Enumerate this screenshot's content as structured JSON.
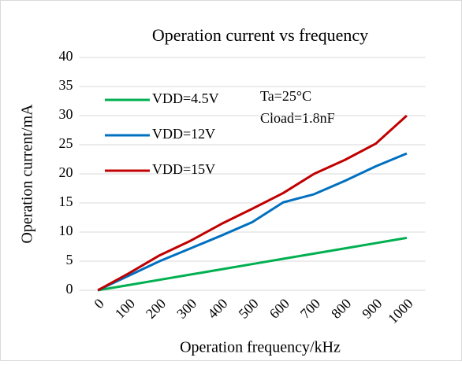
{
  "chart_data": {
    "type": "line",
    "title": "Operation current vs frequency",
    "xlabel": "Operation frequency/kHz",
    "ylabel": "Operation current/mA",
    "categories": [
      "0",
      "100",
      "200",
      "300",
      "400",
      "500",
      "600",
      "700",
      "800",
      "900",
      "1000"
    ],
    "series": [
      {
        "name": "VDD=4.5V",
        "color": "#00b050",
        "values": [
          0,
          0.9,
          1.8,
          2.7,
          3.6,
          4.5,
          5.4,
          6.3,
          7.2,
          8.1,
          9.0
        ]
      },
      {
        "name": "VDD=12V",
        "color": "#0070c0",
        "values": [
          0,
          2.5,
          5,
          7.2,
          9.4,
          11.7,
          15.1,
          16.5,
          18.8,
          21.3,
          23.5
        ]
      },
      {
        "name": "VDD=15V",
        "color": "#c00000",
        "values": [
          0,
          2.9,
          6,
          8.5,
          11.4,
          14,
          16.7,
          20,
          22.4,
          25.2,
          30
        ]
      }
    ],
    "annotations": [
      "Ta=25°C",
      "Cload=1.8nF"
    ],
    "ylim": [
      0,
      40
    ],
    "yticks": [
      0,
      5,
      10,
      15,
      20,
      25,
      30,
      35,
      40
    ],
    "grid": true,
    "legend": "upper left"
  }
}
